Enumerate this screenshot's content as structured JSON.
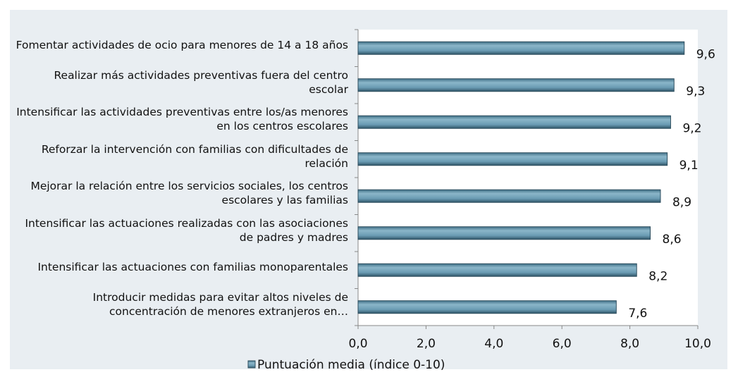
{
  "chart_data": {
    "type": "bar",
    "orientation": "horizontal",
    "categories": [
      "Fomentar actividades de ocio para menores de 14 a 18 años",
      "Realizar más actividades preventivas fuera del centro escolar",
      "Intensificar las actividades preventivas entre los/as menores en los centros escolares",
      "Reforzar la intervención con familias con dificultades de relación",
      "Mejorar la relación entre los servicios sociales, los centros escolares y las familias",
      "Intensificar las actuaciones realizadas con las asociaciones de padres y madres",
      "Intensificar las actuaciones con familias monoparentales",
      "Introducir medidas para evitar altos niveles de concentración de menores extranjeros en…"
    ],
    "series": [
      {
        "name": "Puntuación media (índice 0-10)",
        "color": "#6a9bb3",
        "values": [
          9.6,
          9.3,
          9.2,
          9.1,
          8.9,
          8.6,
          8.2,
          7.6
        ],
        "value_labels": [
          "9,6",
          "9,3",
          "9,2",
          "9,1",
          "8,9",
          "8,6",
          "8,2",
          "7,6"
        ]
      }
    ],
    "xlim": [
      0,
      10
    ],
    "xticks": [
      {
        "value": 0,
        "label": "0,0"
      },
      {
        "value": 2,
        "label": "2,0"
      },
      {
        "value": 4,
        "label": "4,0"
      },
      {
        "value": 6,
        "label": "6,0"
      },
      {
        "value": 8,
        "label": "8,0"
      },
      {
        "value": 10,
        "label": "10,0"
      }
    ],
    "grid": false,
    "legend": "bottom"
  }
}
